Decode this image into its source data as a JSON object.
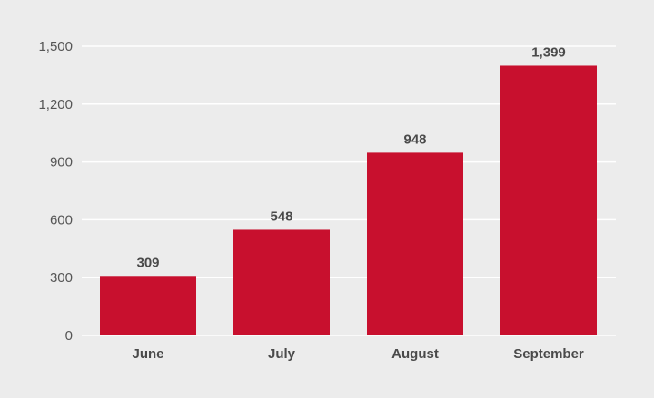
{
  "chart_data": {
    "type": "bar",
    "title": "",
    "xlabel": "",
    "ylabel": "",
    "categories": [
      "June",
      "July",
      "August",
      "September"
    ],
    "values": [
      309,
      548,
      948,
      1399
    ],
    "value_labels": [
      "309",
      "548",
      "948",
      "1,399"
    ],
    "ylim": [
      0,
      1500
    ],
    "yticks": [
      0,
      300,
      600,
      900,
      1200,
      1500
    ],
    "ytick_labels": [
      "0",
      "300",
      "600",
      "900",
      "1,200",
      "1,500"
    ],
    "grid": true,
    "legend": "none",
    "colors": {
      "bar": "#c8102e",
      "background": "#ececec",
      "grid": "#ffffff",
      "text": "#4a4a4a"
    }
  }
}
